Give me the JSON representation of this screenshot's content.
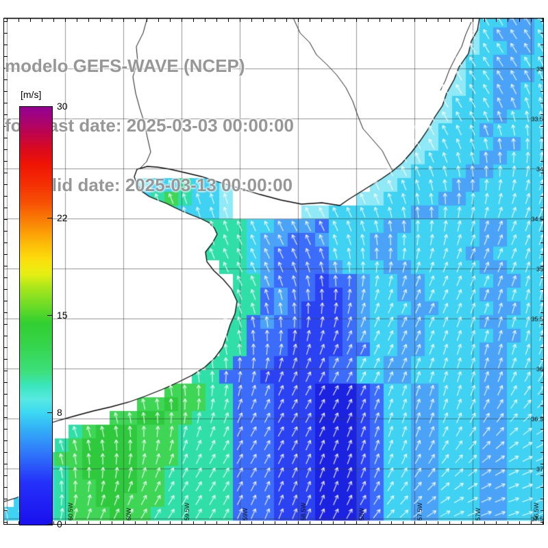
{
  "title": {
    "line1": "modelo GEFS-WAVE (NCEP)",
    "line2": "forecast date: 2025-03-03 00:00:00",
    "line3": "valid date: 2025-03-13 00:00:00"
  },
  "colorbar": {
    "unit_label": "[m/s]",
    "min": 0,
    "max": 30,
    "tick_labels": [
      "30",
      "22",
      "15",
      "8",
      "0"
    ],
    "tick_values": [
      30,
      22,
      15,
      8,
      0
    ],
    "gradient_stops": [
      {
        "v": 0,
        "c": "#1a10ee"
      },
      {
        "v": 3,
        "c": "#2430fa"
      },
      {
        "v": 5,
        "c": "#2f72fa"
      },
      {
        "v": 7,
        "c": "#33b4f6"
      },
      {
        "v": 8,
        "c": "#3bd7f2"
      },
      {
        "v": 9,
        "c": "#57e9e2"
      },
      {
        "v": 10,
        "c": "#3ae6bb"
      },
      {
        "v": 11,
        "c": "#3cdf7a"
      },
      {
        "v": 13,
        "c": "#35d44a"
      },
      {
        "v": 14.5,
        "c": "#31cf30"
      },
      {
        "v": 15.5,
        "c": "#63da28"
      },
      {
        "v": 17,
        "c": "#a8e61c"
      },
      {
        "v": 18,
        "c": "#e6ef12"
      },
      {
        "v": 19,
        "c": "#fbdf0c"
      },
      {
        "v": 20,
        "c": "#fdc008"
      },
      {
        "v": 21,
        "c": "#fb9d06"
      },
      {
        "v": 22,
        "c": "#f97a05"
      },
      {
        "v": 23,
        "c": "#f75404"
      },
      {
        "v": 24.5,
        "c": "#f42d03"
      },
      {
        "v": 26,
        "c": "#ee1205"
      },
      {
        "v": 27,
        "c": "#d90a20"
      },
      {
        "v": 28,
        "c": "#c00548"
      },
      {
        "v": 29,
        "c": "#a80372"
      },
      {
        "v": 30,
        "c": "#930291"
      }
    ]
  },
  "map": {
    "land_color": "#ffffff",
    "coast_color": "#000000",
    "grid_color": "rgba(60,60,60,0.55)",
    "arrow_color": "#ffffff",
    "lat_labels": [
      "33",
      "33.5",
      "34",
      "34.5",
      "35",
      "35.5",
      "36",
      "36.5",
      "37",
      "37.5"
    ],
    "lon_labels": [
      "60.5W",
      "60W",
      "59.5W",
      "59W",
      "58.5W",
      "58W",
      "57.5W",
      "57W",
      "56.5W"
    ],
    "palette": {
      "1": "#8fe9f6",
      "2": "#3fd2f2",
      "3": "#4aa3f7",
      "4": "#3b6cfa",
      "5": "#2b42f2",
      "6": "#1b23e0",
      "7": "#30dfa8",
      "8": "#3fd555",
      "9": "#2fc93e"
    },
    "grid_rows": [
      "........................................",
      "...................................22332",
      "..................................123332",
      "..................................122332",
      ".................................1223322",
      ".................................1223332",
      "................................11223322",
      "................................12223322",
      "...............................112223222",
      "..............................1122232222",
      "..............................1122223322",
      ".............................11222233222",
      "............................112222332222",
      "..........1227221..........1122223322222",
      "..........2787221.........11222233222222",
      "..........2772221.....112222223322222222",
      "..............77772233342222332222233222",
      "...............7772334432223322222233222",
      "...............7772344442223322222332222",
      "................772344443222332222233222",
      ".................77344454432233222223322",
      ".................77434455432233222233222",
      ".................77434555432223322223322",
      "................774344555432233222233222",
      "................774445555432233222223322",
      "................774445555442233222233222",
      "...............7744455554422332222233222",
      "..............77444555554422332222233222",
      "............8887744455566654223322233222",
      "..........889887744455566654223322233222",
      "........88998877744455566654223322233222",
      ".....78999888777744455566654223322233222",
      "....789999888777744455566654223322233222",
      "...7889999888777744455566654223322233222",
      "...2789999887777744455566654223322233222",
      "..22788999887777744455566654223322233222",
      ".222788998887777744455566654223322233222",
      "2222788898877777744455566654223322233222"
    ]
  }
}
